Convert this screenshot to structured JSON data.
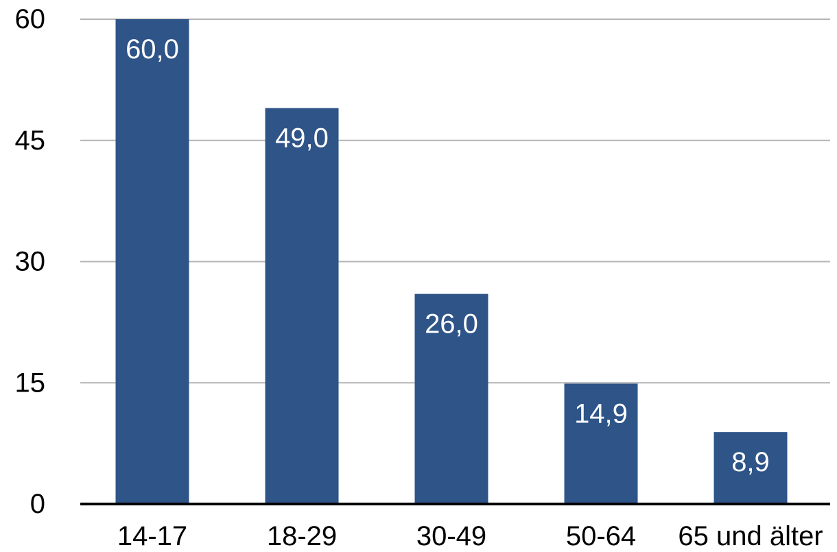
{
  "chart_data": {
    "type": "bar",
    "title": "",
    "xlabel": "",
    "ylabel": "",
    "categories": [
      "14-17",
      "18-29",
      "30-49",
      "50-64",
      "65 und älter"
    ],
    "values": [
      60.0,
      49.0,
      26.0,
      14.9,
      8.9
    ],
    "value_labels": [
      "60,0",
      "49,0",
      "26,0",
      "14,9",
      "8,9"
    ],
    "ylim": [
      0,
      60
    ],
    "yticks": [
      0,
      15,
      30,
      45,
      60
    ],
    "ytick_labels": [
      "0",
      "15",
      "30",
      "45",
      "60"
    ],
    "grid": true,
    "legend": "none",
    "colors": {
      "bar": "#2e5488",
      "grid": "#b4b4b4",
      "axis": "#000000",
      "bar_label": "#ffffff"
    }
  }
}
